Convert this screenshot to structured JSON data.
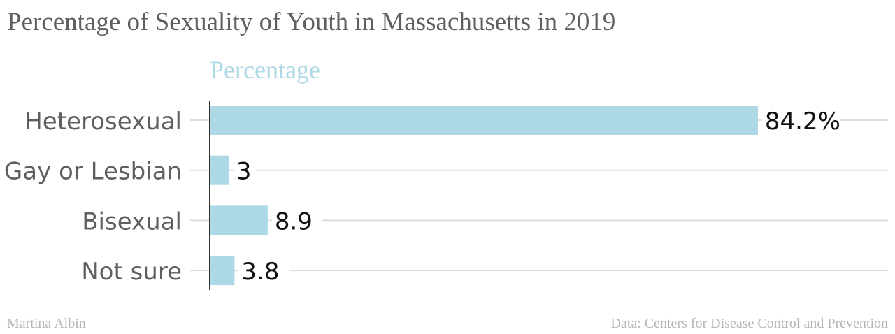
{
  "title": "Percentage of Sexuality of Youth in Massachusetts in 2019",
  "footer": {
    "author": "Martina Albin",
    "source": "Data: Centers for Disease Control and Prevention"
  },
  "colors": {
    "bar": "#add8e6",
    "series_label": "#add8e6",
    "title": "#5f5f5f",
    "category_text": "#5f5f5f",
    "value_text": "#111111",
    "gridline": "#dddddd",
    "axis": "#333333",
    "footer": "#b6b6b6"
  },
  "chart_data": {
    "type": "bar",
    "orientation": "horizontal",
    "title": "Percentage of Sexuality of Youth in Massachusetts in 2019",
    "series": [
      {
        "name": "Percentage",
        "values": [
          84.2,
          3,
          8.9,
          3.8
        ]
      }
    ],
    "categories": [
      "Heterosexual",
      "Gay or Lesbian",
      "Bisexual",
      "Not sure"
    ],
    "value_labels": [
      "84.2%",
      "3",
      "8.9",
      "3.8"
    ],
    "xlim": [
      0,
      100
    ],
    "xlabel": "",
    "ylabel": "",
    "grid": true
  }
}
